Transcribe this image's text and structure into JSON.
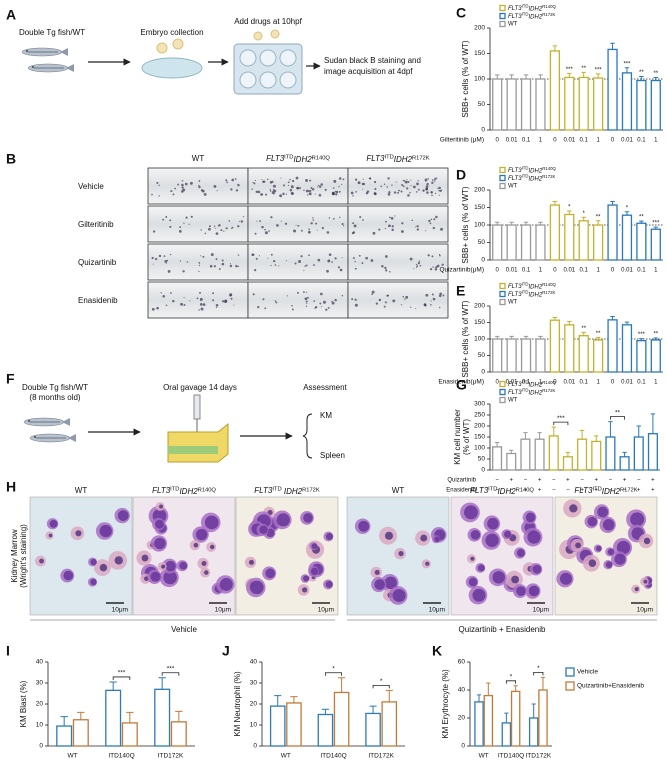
{
  "schema_a": {
    "panel": "A",
    "steps": [
      "Double Tg fish/WT",
      "Embryo collection",
      "Add drugs at 10hpf"
    ],
    "final_lines": [
      "Sudan black B staining and",
      "image acquisition at 4dpf"
    ]
  },
  "panel_b": {
    "panel": "B",
    "columns": [
      "WT",
      "FLT3ITDIDH2R140Q",
      "FLT3ITDIDH2R172K"
    ],
    "rows": [
      "Vehicle",
      "Gilteritinib",
      "Quizartinib",
      "Enasidenib"
    ]
  },
  "schema_f": {
    "panel": "F",
    "fish_lines": [
      "Double Tg fish/WT",
      "(8 months old)"
    ],
    "gavage": "Oral gavage 14 days",
    "assessment": "Assessment",
    "outputs": [
      "KM",
      "Spleen"
    ]
  },
  "panel_h": {
    "panel": "H",
    "side_label_lines": [
      "Kidney Marrow",
      "(Wright's staining)"
    ],
    "columns": [
      "WT",
      "FLT3ITDIDH2R140Q",
      "FLT3ITD IDH2R172K",
      "WT",
      "FLT3ITDIDH2R140Q",
      "FLT3ITDIDH2R172K"
    ],
    "scale_bar": "10μm",
    "groups": [
      "Vehicle",
      "Quizartinib + Enasidenib"
    ]
  },
  "chart_data": [
    {
      "type": "bar",
      "panel": "C",
      "ylabel": "SBB+ cells (% of WT)",
      "xlabel": "Gilteritinib (μM)",
      "categories": [
        "0",
        "0.01",
        "0.1",
        "1",
        "0",
        "0.01",
        "0.1",
        "1",
        "0",
        "0.01",
        "0.1",
        "1"
      ],
      "series": [
        {
          "name": "FLT3ITDIDH2R140Q",
          "color": "#c4b12c",
          "values": [
            null,
            null,
            null,
            null,
            155,
            103,
            103,
            102,
            null,
            null,
            null,
            null
          ],
          "errors": [
            null,
            null,
            null,
            null,
            10,
            8,
            10,
            8,
            null,
            null,
            null,
            null
          ],
          "significance": [
            null,
            null,
            null,
            null,
            null,
            "***",
            "**",
            "***",
            null,
            null,
            null,
            null
          ]
        },
        {
          "name": "FLT3ITDIDH2R172K",
          "color": "#2a78b8",
          "values": [
            null,
            null,
            null,
            null,
            null,
            null,
            null,
            null,
            158,
            112,
            97,
            97
          ],
          "errors": [
            null,
            null,
            null,
            null,
            null,
            null,
            null,
            null,
            12,
            10,
            8,
            6
          ],
          "significance": [
            null,
            null,
            null,
            null,
            null,
            null,
            null,
            null,
            null,
            "***",
            "**",
            "**"
          ]
        },
        {
          "name": "WT",
          "color": "#999999",
          "values": [
            100,
            100,
            100,
            100,
            null,
            null,
            null,
            null,
            null,
            null,
            null,
            null
          ],
          "errors": [
            8,
            8,
            8,
            8,
            null,
            null,
            null,
            null,
            null,
            null,
            null,
            null
          ]
        }
      ],
      "ylim": [
        0,
        200
      ],
      "yticks": [
        0,
        50,
        100,
        150,
        200
      ],
      "reference_line": 100,
      "legend": "upper left"
    },
    {
      "type": "bar",
      "panel": "D",
      "ylabel": "SBB+ cells (% of WT)",
      "xlabel": "Quizartinib(μM)",
      "categories": [
        "0",
        "0.01",
        "0.1",
        "1",
        "0",
        "0.01",
        "0.1",
        "1",
        "0",
        "0.01",
        "0.1",
        "1"
      ],
      "series": [
        {
          "name": "FLT3ITDIDH2R140Q",
          "color": "#c4b12c",
          "values": [
            null,
            null,
            null,
            null,
            157,
            130,
            112,
            100,
            null,
            null,
            null,
            null
          ],
          "errors": [
            null,
            null,
            null,
            null,
            10,
            10,
            10,
            12,
            null,
            null,
            null,
            null
          ],
          "significance": [
            null,
            null,
            null,
            null,
            null,
            "*",
            "*",
            "**",
            null,
            null,
            null,
            null
          ]
        },
        {
          "name": "FLT3ITDIDH2R172K",
          "color": "#2a78b8",
          "values": [
            null,
            null,
            null,
            null,
            null,
            null,
            null,
            null,
            157,
            128,
            105,
            88
          ],
          "errors": [
            null,
            null,
            null,
            null,
            null,
            null,
            null,
            null,
            10,
            10,
            6,
            6
          ],
          "significance": [
            null,
            null,
            null,
            null,
            null,
            null,
            null,
            null,
            null,
            "*",
            "**",
            "***"
          ]
        },
        {
          "name": "WT",
          "color": "#999999",
          "values": [
            100,
            100,
            100,
            100,
            null,
            null,
            null,
            null,
            null,
            null,
            null,
            null
          ],
          "errors": [
            8,
            8,
            8,
            8,
            null,
            null,
            null,
            null,
            null,
            null,
            null,
            null
          ]
        }
      ],
      "ylim": [
        0,
        200
      ],
      "yticks": [
        0,
        50,
        100,
        150,
        200
      ],
      "reference_line": 100,
      "legend": "upper left"
    },
    {
      "type": "bar",
      "panel": "E",
      "ylabel": "SBB+ cells (% of WT)",
      "xlabel": "Enasidenib(μM)",
      "categories": [
        "0",
        "0.01",
        "0.1",
        "1",
        "0",
        "0.01",
        "0.1",
        "1",
        "0",
        "0.01",
        "0.1",
        "1"
      ],
      "series": [
        {
          "name": "FLT3ITDIDH2R140Q",
          "color": "#c4b12c",
          "values": [
            null,
            null,
            null,
            null,
            157,
            143,
            110,
            97,
            null,
            null,
            null,
            null
          ],
          "errors": [
            null,
            null,
            null,
            null,
            8,
            10,
            10,
            8,
            null,
            null,
            null,
            null
          ],
          "significance": [
            null,
            null,
            null,
            null,
            null,
            null,
            "**",
            "**",
            null,
            null,
            null,
            null
          ]
        },
        {
          "name": "FLT3ITDIDH2R172K",
          "color": "#2a78b8",
          "values": [
            null,
            null,
            null,
            null,
            null,
            null,
            null,
            null,
            158,
            143,
            95,
            97
          ],
          "errors": [
            null,
            null,
            null,
            null,
            null,
            null,
            null,
            null,
            10,
            8,
            6,
            6
          ],
          "significance": [
            null,
            null,
            null,
            null,
            null,
            null,
            null,
            null,
            null,
            null,
            "***",
            "**"
          ]
        },
        {
          "name": "WT",
          "color": "#999999",
          "values": [
            100,
            100,
            100,
            100,
            null,
            null,
            null,
            null,
            null,
            null,
            null,
            null
          ],
          "errors": [
            8,
            8,
            8,
            8,
            null,
            null,
            null,
            null,
            null,
            null,
            null,
            null
          ]
        }
      ],
      "ylim": [
        0,
        200
      ],
      "yticks": [
        0,
        50,
        100,
        150,
        200
      ],
      "reference_line": 100,
      "legend": "upper left"
    },
    {
      "type": "bar",
      "panel": "G",
      "ylabel": [
        "KM cell number",
        "(% of WT)"
      ],
      "categories": [
        null,
        null,
        null,
        null,
        null,
        null,
        null,
        null,
        null,
        null,
        null,
        null
      ],
      "series": [
        {
          "name": "FLT3ITDIDH2R140Q",
          "color": "#c4b12c",
          "values": [
            null,
            null,
            null,
            null,
            155,
            60,
            140,
            130,
            null,
            null,
            null,
            null
          ],
          "errors": [
            null,
            null,
            null,
            null,
            40,
            20,
            40,
            25,
            null,
            null,
            null,
            null
          ]
        },
        {
          "name": "FLT3ITDIDH2R172K",
          "color": "#2a78b8",
          "values": [
            null,
            null,
            null,
            null,
            null,
            null,
            null,
            null,
            150,
            60,
            150,
            165
          ],
          "errors": [
            null,
            null,
            null,
            null,
            null,
            null,
            null,
            null,
            70,
            20,
            50,
            90
          ]
        },
        {
          "name": "WT",
          "color": "#999999",
          "values": [
            105,
            75,
            140,
            140,
            null,
            null,
            null,
            null,
            null,
            null,
            null,
            null
          ],
          "errors": [
            20,
            15,
            30,
            30,
            null,
            null,
            null,
            null,
            null,
            null,
            null,
            null
          ]
        }
      ],
      "comparisons": [
        {
          "categories": [
            4,
            5
          ],
          "label": "***"
        },
        {
          "categories": [
            8,
            9
          ],
          "label": "**"
        }
      ],
      "treatments": [
        {
          "name": "Quizartinib",
          "marks": [
            "−",
            "+",
            "−",
            "+",
            "−",
            "+",
            "−",
            "+",
            "−",
            "+",
            "−",
            "+"
          ]
        },
        {
          "name": "Enasidenib",
          "marks": [
            "−",
            "−",
            "+",
            "+",
            "−",
            "−",
            "+",
            "+",
            "−",
            "−",
            "+",
            "+"
          ]
        }
      ],
      "ylim": [
        0,
        300
      ],
      "yticks": [
        0,
        50,
        100,
        150,
        200,
        250,
        300
      ],
      "legend": "upper left"
    },
    {
      "type": "grouped_bar",
      "panel": "I",
      "ylabel": "KM Blast (%)",
      "categories": [
        "WT",
        "ITD140Q",
        "ITD172K"
      ],
      "series": [
        {
          "color": "#2c7bb6",
          "values": [
            9.5,
            26.5,
            27
          ],
          "errors": [
            4.5,
            4,
            5.5
          ]
        },
        {
          "color": "#c27a3a",
          "values": [
            12.5,
            11,
            11.5
          ],
          "errors": [
            3.5,
            5,
            5
          ]
        }
      ],
      "significance": [
        null,
        "***",
        "***"
      ],
      "ylim": [
        0,
        40
      ],
      "yticks": [
        0,
        10,
        20,
        30,
        40
      ]
    },
    {
      "type": "grouped_bar",
      "panel": "J",
      "ylabel": "KM Neutrophil (%)",
      "categories": [
        "WT",
        "ITD140Q",
        "ITD172K"
      ],
      "series": [
        {
          "color": "#2c7bb6",
          "values": [
            19,
            15,
            15.5
          ],
          "errors": [
            5,
            2.5,
            3.5
          ]
        },
        {
          "color": "#c27a3a",
          "values": [
            20.5,
            25.5,
            21
          ],
          "errors": [
            3,
            7,
            5.5
          ]
        }
      ],
      "significance": [
        null,
        "*",
        "*"
      ],
      "ylim": [
        0,
        40
      ],
      "yticks": [
        0,
        10,
        20,
        30,
        40
      ]
    },
    {
      "type": "grouped_bar",
      "panel": "K",
      "ylabel": "KM Erythrocyte (%)",
      "categories": [
        "WT",
        "ITD140Q",
        "ITD172K"
      ],
      "series": [
        {
          "name": "Vehicle",
          "color": "#2c7bb6",
          "values": [
            31.5,
            16.5,
            20
          ],
          "errors": [
            5,
            7,
            10
          ]
        },
        {
          "name": "Quizartinib+Enasidenib",
          "color": "#c27a3a",
          "values": [
            36,
            39,
            40
          ],
          "errors": [
            9,
            4,
            9
          ]
        }
      ],
      "significance": [
        null,
        "*",
        "*"
      ],
      "ylim": [
        0,
        60
      ],
      "yticks": [
        0,
        20,
        40,
        60
      ],
      "legend": "right"
    }
  ]
}
